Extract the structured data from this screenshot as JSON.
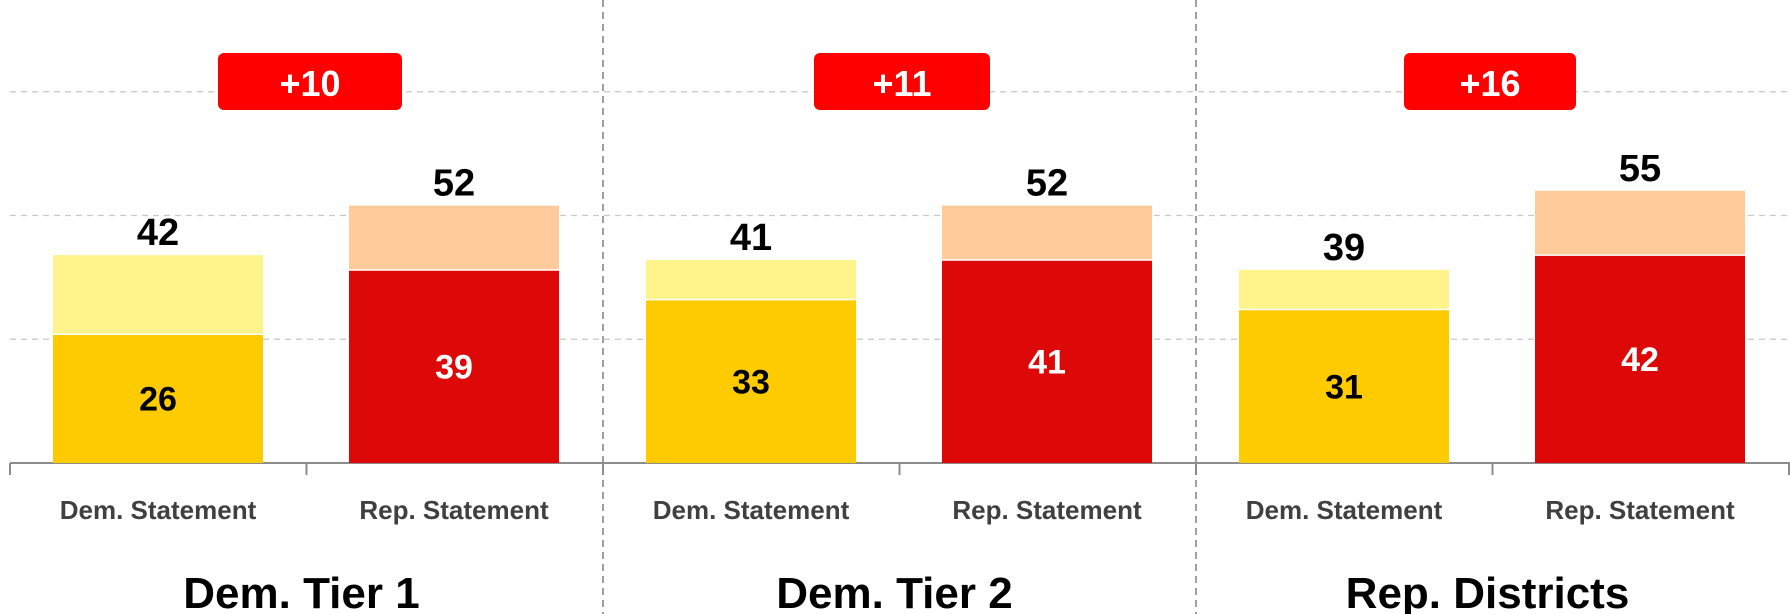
{
  "colors": {
    "dem_inner": "#fdcb00",
    "dem_outer": "#fff38c",
    "rep_inner": "#dd0808",
    "rep_outer": "#ffcb9a",
    "badge": "#ff0000",
    "grid": "#c8c8c8",
    "separator": "#808080"
  },
  "chart_data": {
    "type": "bar",
    "stacked": "overlay",
    "y_range": [
      0,
      100
    ],
    "grid": true,
    "grid_values": [
      25,
      50,
      75
    ],
    "groups": [
      {
        "label": "Dem. Tier 1",
        "margin": "+10",
        "bars": [
          {
            "category": "Dem. Statement",
            "party": "dem",
            "total": 42,
            "inner": 26
          },
          {
            "category": "Rep. Statement",
            "party": "rep",
            "total": 52,
            "inner": 39
          }
        ]
      },
      {
        "label": "Dem. Tier 2",
        "margin": "+11",
        "bars": [
          {
            "category": "Dem. Statement",
            "party": "dem",
            "total": 41,
            "inner": 33
          },
          {
            "category": "Rep. Statement",
            "party": "rep",
            "total": 52,
            "inner": 41
          }
        ]
      },
      {
        "label": "Rep. Districts",
        "margin": "+16",
        "bars": [
          {
            "category": "Dem. Statement",
            "party": "dem",
            "total": 39,
            "inner": 31
          },
          {
            "category": "Rep. Statement",
            "party": "rep",
            "total": 55,
            "inner": 42
          }
        ]
      }
    ]
  }
}
